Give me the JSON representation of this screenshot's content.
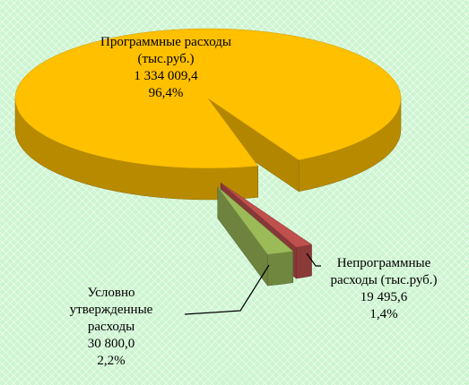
{
  "chart_data": {
    "type": "pie3d",
    "categories": [
      "Программные расходы (тыс.руб.)",
      "Непрограммные расходы (тыс.руб.)",
      "Условно утвержденные расходы"
    ],
    "values": [
      1334009.4,
      19495.6,
      30800.0
    ],
    "value_labels": [
      "1 334 009,4",
      "19 495,6",
      "30 800,0"
    ],
    "percents": [
      96.4,
      1.4,
      2.2
    ],
    "percent_labels": [
      "96,4%",
      "1,4%",
      "2,2%"
    ],
    "colors": [
      "#ffc000",
      "#c0504d",
      "#9bbb59"
    ]
  }
}
